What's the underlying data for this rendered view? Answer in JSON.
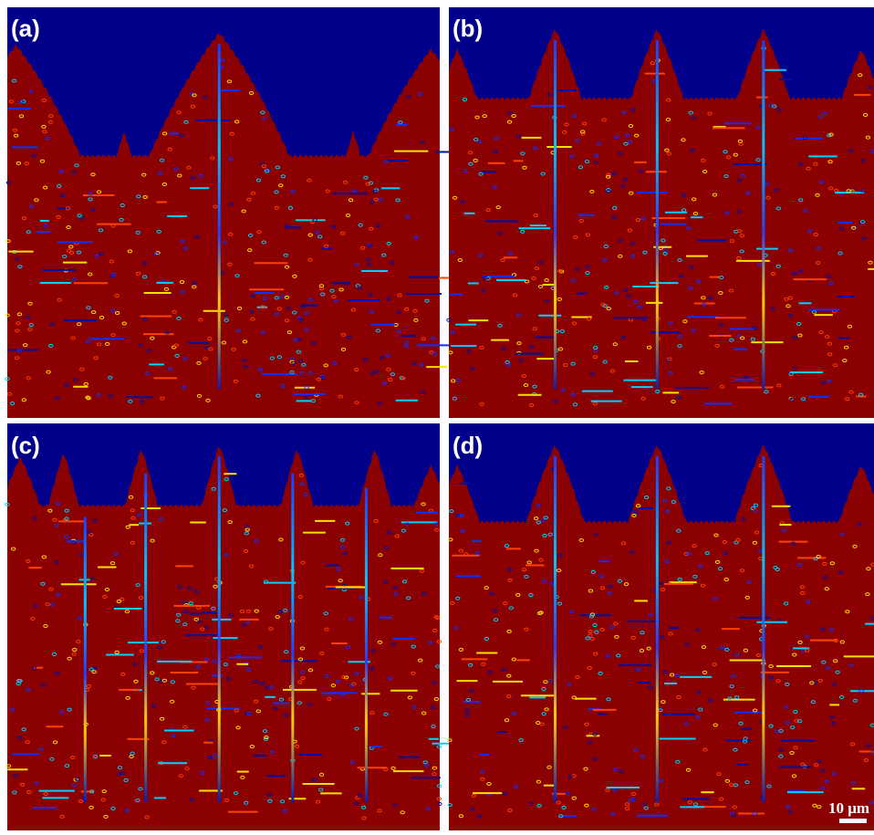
{
  "panels": [
    {
      "label": "(a)"
    },
    {
      "label": "(b)"
    },
    {
      "label": "(c)"
    },
    {
      "label": "(d)"
    }
  ],
  "scale_bar": {
    "label": "10 μm"
  }
}
